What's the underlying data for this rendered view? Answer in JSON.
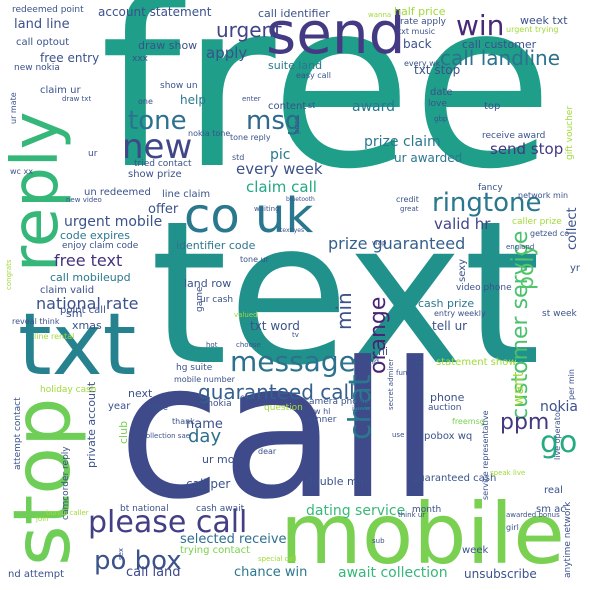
{
  "words": [
    {
      "t": "free",
      "c": "#1f9e89"
    },
    {
      "t": "text",
      "c": "#21918c"
    },
    {
      "t": "call",
      "c": "#3e4a89"
    },
    {
      "t": "send",
      "c": "#443983"
    },
    {
      "t": "reply",
      "c": "#35b779"
    },
    {
      "t": "txt",
      "c": "#26828e"
    },
    {
      "t": "stop",
      "c": "#6ece58"
    },
    {
      "t": "mobile",
      "c": "#7ad151"
    },
    {
      "t": "co uk",
      "c": "#2a788e"
    },
    {
      "t": "please call",
      "c": "#433e85"
    },
    {
      "t": "new",
      "c": "#404688"
    },
    {
      "t": "tone",
      "c": "#2c728e"
    },
    {
      "t": "msg",
      "c": "#31688e"
    },
    {
      "t": "ringtone",
      "c": "#2a788e"
    },
    {
      "t": "win",
      "c": "#482878"
    },
    {
      "t": "call landline",
      "c": "#2c728e"
    },
    {
      "t": "message",
      "c": "#2c728e"
    },
    {
      "t": "chat",
      "c": "#2a788e"
    },
    {
      "t": "customer service",
      "c": "#4ac16d"
    },
    {
      "t": "poly",
      "c": "#52c569"
    },
    {
      "t": "po box",
      "c": "#3b528b"
    },
    {
      "t": "urgent",
      "c": "#414487"
    },
    {
      "t": "guaranteed call",
      "c": "#355f8d"
    },
    {
      "t": "prize guaranteed",
      "c": "#355f8d"
    },
    {
      "t": "free text",
      "c": "#46337e"
    },
    {
      "t": "national rate",
      "c": "#3b528b"
    },
    {
      "t": "orange",
      "c": "#482475"
    },
    {
      "t": "ppm",
      "c": "#453781"
    },
    {
      "t": "go",
      "c": "#25ab82"
    },
    {
      "t": "min",
      "c": "#3b528b"
    },
    {
      "t": "day",
      "c": "#2d708e"
    },
    {
      "t": "await collection",
      "c": "#35b779"
    },
    {
      "t": "dating service",
      "c": "#38b977"
    },
    {
      "t": "chance win",
      "c": "#2a788e"
    },
    {
      "t": "call land",
      "c": "#3e4a89"
    },
    {
      "t": "selected receive",
      "c": "#2e6e8e"
    },
    {
      "t": "unsubscribe",
      "c": "#3b528b"
    },
    {
      "t": "claim call",
      "c": "#22a884"
    },
    {
      "t": "valid hr",
      "c": "#414487"
    },
    {
      "t": "every week",
      "c": "#3b528b"
    },
    {
      "t": "send stop",
      "c": "#453882"
    },
    {
      "t": "prize claim",
      "c": "#2a788e"
    },
    {
      "t": "want",
      "c": "#a0da39"
    },
    {
      "t": "nokia",
      "c": "#3b528b"
    },
    {
      "t": "collect",
      "c": "#3b528b"
    },
    {
      "t": "award",
      "c": "#2a788e"
    },
    {
      "t": "ur awarded",
      "c": "#2a788e"
    },
    {
      "t": "apply",
      "c": "#3b528b"
    },
    {
      "t": "name",
      "c": "#3b528b"
    },
    {
      "t": "offer",
      "c": "#3b528b"
    },
    {
      "t": "pic",
      "c": "#2a788e"
    },
    {
      "t": "urgent mobile",
      "c": "#3b528b"
    },
    {
      "t": "code expires",
      "c": "#2a788e"
    },
    {
      "t": "call mobileupd",
      "c": "#2a788e"
    },
    {
      "t": "identifier code",
      "c": "#2a788e"
    },
    {
      "t": "land row",
      "c": "#3b528b"
    },
    {
      "t": "txt word",
      "c": "#3b528b"
    },
    {
      "t": "tell ur",
      "c": "#3b528b"
    },
    {
      "t": "cash prize",
      "c": "#2a788e"
    },
    {
      "t": "video phone",
      "c": "#3b528b"
    },
    {
      "t": "account statement",
      "c": "#3b528b"
    },
    {
      "t": "call identifier",
      "c": "#3b528b"
    },
    {
      "t": "land line",
      "c": "#3b528b"
    },
    {
      "t": "free entry",
      "c": "#3b528b"
    },
    {
      "t": "draw show",
      "c": "#3b528b"
    },
    {
      "t": "week txt",
      "c": "#3b528b"
    },
    {
      "t": "txt stop",
      "c": "#3b528b"
    },
    {
      "t": "call customer",
      "c": "#3b528b"
    },
    {
      "t": "back",
      "c": "#3b528b"
    },
    {
      "t": "suite land",
      "c": "#2a788e"
    },
    {
      "t": "help",
      "c": "#2a788e"
    },
    {
      "t": "content",
      "c": "#3b528b"
    },
    {
      "t": "redeemed point",
      "c": "#3b528b"
    },
    {
      "t": "half price",
      "c": "#a0da39"
    },
    {
      "t": "call optout",
      "c": "#3b528b"
    },
    {
      "t": "claim ur",
      "c": "#3b528b"
    },
    {
      "t": "xmas",
      "c": "#3b528b"
    },
    {
      "t": "point call",
      "c": "#3b528b"
    },
    {
      "t": "private account",
      "c": "#3b528b"
    },
    {
      "t": "club",
      "c": "#7ad151"
    },
    {
      "t": "ur mob",
      "c": "#3b528b"
    },
    {
      "t": "call per",
      "c": "#3b528b"
    },
    {
      "t": "double min",
      "c": "#3b528b"
    },
    {
      "t": "guaranteed cash",
      "c": "#3b528b"
    },
    {
      "t": "pobox wq",
      "c": "#3b528b"
    },
    {
      "t": "statement show",
      "c": "#a0da39"
    },
    {
      "t": "phone",
      "c": "#3b528b"
    },
    {
      "t": "hi",
      "c": "#3b528b"
    },
    {
      "t": "next",
      "c": "#3b528b"
    },
    {
      "t": "year",
      "c": "#3b528b"
    },
    {
      "t": "sm",
      "c": "#3b528b"
    },
    {
      "t": "show prize",
      "c": "#3b528b"
    },
    {
      "t": "tried contact",
      "c": "#3b528b"
    },
    {
      "t": "line claim",
      "c": "#3b528b"
    },
    {
      "t": "un redeemed",
      "c": "#3b528b"
    },
    {
      "t": "claim valid",
      "c": "#3b528b"
    },
    {
      "t": "enjoy claim code",
      "c": "#3b528b"
    },
    {
      "t": "trying contact",
      "c": "#7ad151"
    },
    {
      "t": "holiday cash",
      "c": "#a0da39"
    },
    {
      "t": "hg suite",
      "c": "#3b528b"
    },
    {
      "t": "txt nokia",
      "c": "#3b528b"
    },
    {
      "t": "camera phone",
      "c": "#3b528b"
    },
    {
      "t": "mobile number",
      "c": "#3b528b"
    },
    {
      "t": "attempt contact",
      "c": "#3b528b"
    },
    {
      "t": "camcorder reply",
      "c": "#3b528b"
    },
    {
      "t": "bt national",
      "c": "#3b528b"
    },
    {
      "t": "cash await",
      "c": "#3b528b"
    },
    {
      "t": "nd attempt",
      "c": "#3b528b"
    },
    {
      "t": "real",
      "c": "#3b528b"
    },
    {
      "t": "sm ac",
      "c": "#3b528b"
    },
    {
      "t": "week",
      "c": "#3b528b"
    },
    {
      "t": "month",
      "c": "#3b528b"
    },
    {
      "t": "auction",
      "c": "#3b528b"
    },
    {
      "t": "freemsg",
      "c": "#7ad151"
    },
    {
      "t": "fancy",
      "c": "#3b528b"
    },
    {
      "t": "network min",
      "c": "#3b528b"
    },
    {
      "t": "caller prize",
      "c": "#a0da39"
    },
    {
      "t": "yr",
      "c": "#3b528b"
    },
    {
      "t": "st week",
      "c": "#3b528b"
    },
    {
      "t": "receive award",
      "c": "#3b528b"
    },
    {
      "t": "gift voucher",
      "c": "#a0da39"
    },
    {
      "t": "date",
      "c": "#3b528b"
    },
    {
      "t": "top",
      "c": "#3b528b"
    },
    {
      "t": "love",
      "c": "#3b528b"
    },
    {
      "t": "rate apply",
      "c": "#3b528b"
    },
    {
      "t": "urgent trying",
      "c": "#a0da39"
    },
    {
      "t": "txt music",
      "c": "#3b528b"
    },
    {
      "t": "wanna",
      "c": "#a0da39"
    },
    {
      "t": "easy call",
      "c": "#3b528b"
    },
    {
      "t": "every wk",
      "c": "#3b528b"
    },
    {
      "t": "new nokia",
      "c": "#3b528b"
    },
    {
      "t": "ur mate",
      "c": "#3b528b"
    },
    {
      "t": "draw txt",
      "c": "#3b528b"
    },
    {
      "t": "show un",
      "c": "#3b528b"
    },
    {
      "t": "xxx",
      "c": "#3b528b"
    },
    {
      "t": "one",
      "c": "#3b528b"
    },
    {
      "t": "wc xx",
      "c": "#3b528b"
    },
    {
      "t": "new video",
      "c": "#3b528b"
    },
    {
      "t": "congrats",
      "c": "#a0da39"
    },
    {
      "t": "reveal think",
      "c": "#3b528b"
    },
    {
      "t": "line rental",
      "c": "#a0da39"
    },
    {
      "t": "sexy",
      "c": "#3b528b"
    },
    {
      "t": "opt",
      "c": "#3b528b"
    },
    {
      "t": "std",
      "c": "#3b528b"
    },
    {
      "t": "enter",
      "c": "#3b528b"
    },
    {
      "t": "bluetooth",
      "c": "#3b528b"
    },
    {
      "t": "waiting",
      "c": "#3b528b"
    },
    {
      "t": "choose",
      "c": "#3b528b"
    },
    {
      "t": "text yes",
      "c": "#3b528b"
    },
    {
      "t": "tone ur",
      "c": "#3b528b"
    },
    {
      "t": "valued",
      "c": "#a0da39"
    },
    {
      "t": "game",
      "c": "#3b528b"
    },
    {
      "t": "ur cash",
      "c": "#3b528b"
    },
    {
      "t": "hot",
      "c": "#3b528b"
    },
    {
      "t": "end",
      "c": "#3b528b"
    },
    {
      "t": "fun",
      "c": "#3b528b"
    },
    {
      "t": "cost",
      "c": "#3b528b"
    },
    {
      "t": "thank",
      "c": "#3b528b"
    },
    {
      "t": "babe",
      "c": "#3b528b"
    },
    {
      "t": "question",
      "c": "#a0da39"
    },
    {
      "t": "winner",
      "c": "#3b528b"
    },
    {
      "t": "dear",
      "c": "#3b528b"
    },
    {
      "t": "info",
      "c": "#3b528b"
    },
    {
      "t": "use",
      "c": "#3b528b"
    },
    {
      "t": "row hl",
      "c": "#3b528b"
    },
    {
      "t": "collection sae",
      "c": "#3b528b"
    },
    {
      "t": "sex",
      "c": "#3b528b"
    },
    {
      "t": "special call",
      "c": "#a0da39"
    },
    {
      "t": "bonus caller",
      "c": "#a0da39"
    },
    {
      "t": "sub",
      "c": "#3b528b"
    },
    {
      "t": "think ur",
      "c": "#3b528b"
    },
    {
      "t": "join",
      "c": "#a0da39"
    },
    {
      "t": "girl",
      "c": "#3b528b"
    },
    {
      "t": "speak live",
      "c": "#a0da39"
    },
    {
      "t": "awarded bonus",
      "c": "#3b528b"
    },
    {
      "t": "anytime network",
      "c": "#3b528b"
    },
    {
      "t": "live operator",
      "c": "#3b528b"
    },
    {
      "t": "per min",
      "c": "#3b528b"
    },
    {
      "t": "service representative",
      "c": "#3b528b"
    },
    {
      "t": "secret admirer",
      "c": "#3b528b"
    },
    {
      "t": "entry weekly",
      "c": "#3b528b"
    },
    {
      "t": "england",
      "c": "#3b528b"
    },
    {
      "t": "getzed co",
      "c": "#3b528b"
    },
    {
      "t": "great",
      "c": "#3b528b"
    },
    {
      "t": "credit",
      "c": "#3b528b"
    },
    {
      "t": "nokia tone",
      "c": "#3b528b"
    },
    {
      "t": "tone reply",
      "c": "#3b528b"
    },
    {
      "t": "prize",
      "c": "#3b528b"
    },
    {
      "t": "wap",
      "c": "#3b528b"
    },
    {
      "t": "gbp",
      "c": "#3b528b"
    },
    {
      "t": "st",
      "c": "#3b528b"
    },
    {
      "t": "ur",
      "c": "#3b528b"
    },
    {
      "t": "tv",
      "c": "#3b528b"
    }
  ]
}
